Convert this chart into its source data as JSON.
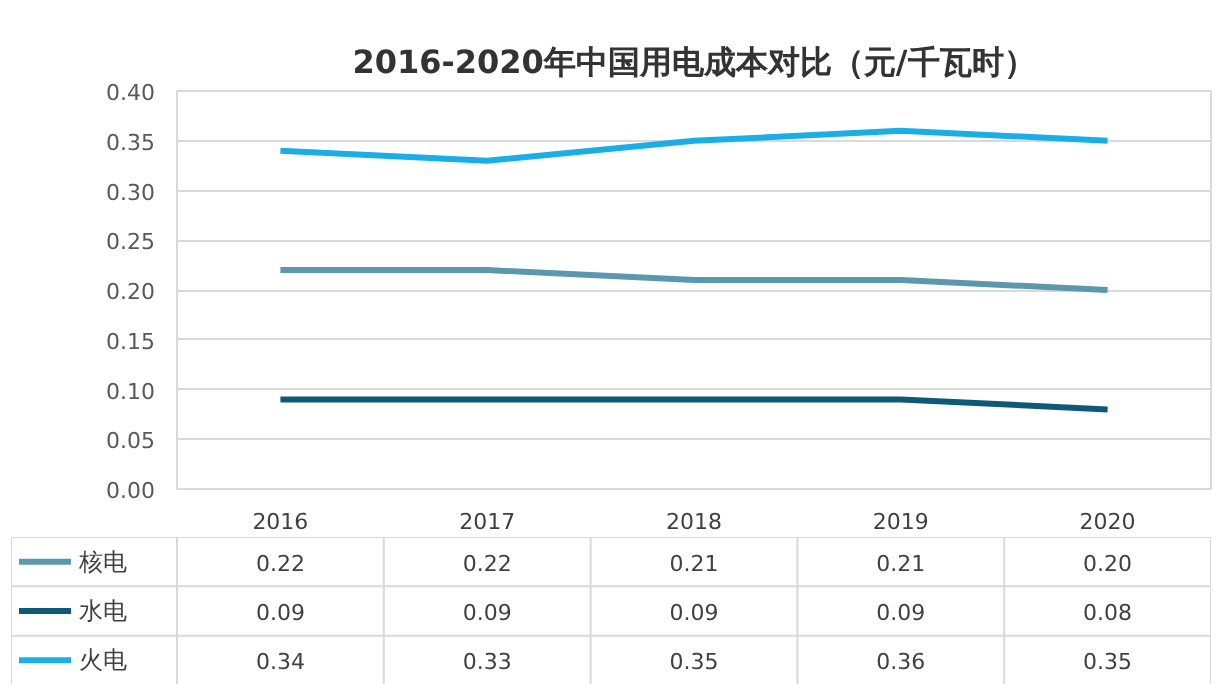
{
  "chart_data": {
    "type": "line",
    "title": "2016-2020年中国用电成本对比（元/千瓦时）",
    "categories": [
      "2016",
      "2017",
      "2018",
      "2019",
      "2020"
    ],
    "series": [
      {
        "name": "核电",
        "color": "#5b98ad",
        "values": [
          0.22,
          0.22,
          0.21,
          0.21,
          0.2
        ],
        "value_labels": [
          "0.22",
          "0.22",
          "0.21",
          "0.21",
          "0.20"
        ]
      },
      {
        "name": "水电",
        "color": "#0e5a76",
        "values": [
          0.09,
          0.09,
          0.09,
          0.09,
          0.08
        ],
        "value_labels": [
          "0.09",
          "0.09",
          "0.09",
          "0.09",
          "0.08"
        ]
      },
      {
        "name": "火电",
        "color": "#1aaee6",
        "values": [
          0.34,
          0.33,
          0.35,
          0.36,
          0.35
        ],
        "value_labels": [
          "0.34",
          "0.33",
          "0.35",
          "0.36",
          "0.35"
        ]
      }
    ],
    "ylim": [
      0,
      0.4
    ],
    "yticks": [
      {
        "value": 0,
        "label": "0.00"
      },
      {
        "value": 0.05,
        "label": "0.05"
      },
      {
        "value": 0.1,
        "label": "0.10"
      },
      {
        "value": 0.15,
        "label": "0.15"
      },
      {
        "value": 0.2,
        "label": "0.20"
      },
      {
        "value": 0.25,
        "label": "0.25"
      },
      {
        "value": 0.3,
        "label": "0.30"
      },
      {
        "value": 0.35,
        "label": "0.35"
      },
      {
        "value": 0.4,
        "label": "0.40"
      }
    ],
    "grid": "y",
    "legend": "bottom",
    "marker": "none",
    "line_style": "solid"
  }
}
